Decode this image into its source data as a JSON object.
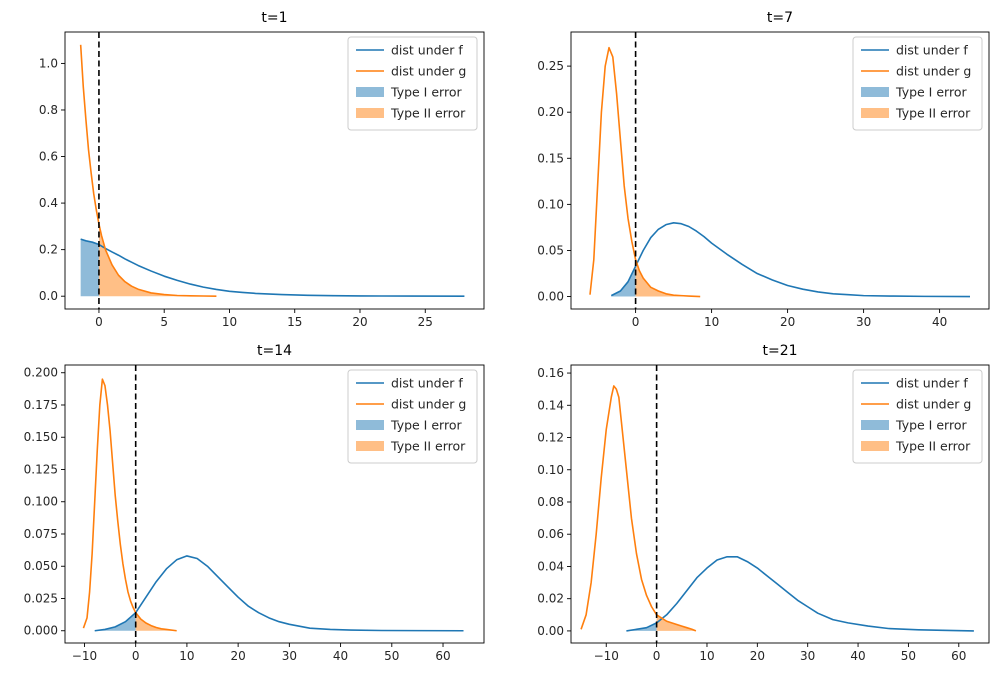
{
  "colors": {
    "f": "#1f77b4",
    "g": "#ff7f0e",
    "threshold": "#000000"
  },
  "chart_data": [
    {
      "type": "line",
      "title": "t=1",
      "xlim": [
        -2.6,
        29.5
      ],
      "ylim": [
        -0.055,
        1.135
      ],
      "xticks": [
        0,
        5,
        10,
        15,
        20,
        25
      ],
      "yticks": [
        0.0,
        0.2,
        0.4,
        0.6,
        0.8,
        1.0
      ],
      "ytick_decimals": 1,
      "legend": {
        "position": "top-right",
        "entries": [
          "dist under f",
          "dist under g",
          "Type I error",
          "Type II error"
        ]
      },
      "threshold_x": 0,
      "series": [
        {
          "name": "dist under f",
          "x": [
            -1.4,
            -1.0,
            -0.5,
            0.0,
            0.5,
            1.0,
            1.5,
            2.0,
            2.5,
            3.0,
            4.0,
            5.0,
            6.0,
            7.0,
            8.0,
            9.0,
            10.0,
            11.0,
            12.0,
            14.0,
            16.0,
            18.0,
            20.0,
            24.0,
            28.0
          ],
          "y": [
            0.245,
            0.238,
            0.232,
            0.222,
            0.205,
            0.19,
            0.176,
            0.16,
            0.146,
            0.132,
            0.108,
            0.086,
            0.068,
            0.052,
            0.039,
            0.029,
            0.021,
            0.016,
            0.012,
            0.007,
            0.004,
            0.002,
            0.001,
            0.0005,
            0.0
          ]
        },
        {
          "name": "dist under g",
          "x": [
            -1.4,
            -1.2,
            -1.0,
            -0.8,
            -0.6,
            -0.4,
            -0.2,
            0.0,
            0.2,
            0.5,
            1.0,
            1.5,
            2.0,
            2.5,
            3.0,
            4.0,
            5.0,
            6.0,
            7.0,
            8.0,
            9.0
          ],
          "y": [
            1.08,
            0.9,
            0.76,
            0.63,
            0.53,
            0.44,
            0.37,
            0.31,
            0.26,
            0.2,
            0.135,
            0.09,
            0.062,
            0.043,
            0.03,
            0.014,
            0.007,
            0.003,
            0.0015,
            0.0008,
            0.0
          ]
        }
      ]
    },
    {
      "type": "line",
      "title": "t=7",
      "xlim": [
        -8.5,
        46.5
      ],
      "ylim": [
        -0.0135,
        0.287
      ],
      "xticks": [
        0,
        10,
        20,
        30,
        40
      ],
      "yticks": [
        0.0,
        0.05,
        0.1,
        0.15,
        0.2,
        0.25
      ],
      "ytick_decimals": 2,
      "legend": {
        "position": "top-right",
        "entries": [
          "dist under f",
          "dist under g",
          "Type I error",
          "Type II error"
        ]
      },
      "threshold_x": 0,
      "series": [
        {
          "name": "dist under f",
          "x": [
            -3.2,
            -2,
            -1,
            0,
            1,
            2,
            3,
            4,
            5,
            6,
            7,
            8,
            9,
            10,
            12,
            14,
            16,
            18,
            20,
            22,
            24,
            26,
            28,
            30,
            34,
            38,
            44
          ],
          "y": [
            0.001,
            0.006,
            0.016,
            0.033,
            0.05,
            0.064,
            0.073,
            0.078,
            0.08,
            0.079,
            0.076,
            0.071,
            0.065,
            0.058,
            0.046,
            0.035,
            0.025,
            0.018,
            0.012,
            0.008,
            0.005,
            0.003,
            0.002,
            0.001,
            0.0005,
            0.0002,
            0.0
          ]
        },
        {
          "name": "dist under g",
          "x": [
            -6.0,
            -5.5,
            -5.0,
            -4.5,
            -4.0,
            -3.5,
            -3.0,
            -2.5,
            -2.0,
            -1.5,
            -1.0,
            -0.5,
            0.0,
            0.5,
            1.0,
            2.0,
            3.0,
            4.0,
            5.0,
            6.0,
            7.0,
            8.5
          ],
          "y": [
            0.002,
            0.04,
            0.12,
            0.2,
            0.25,
            0.27,
            0.26,
            0.22,
            0.17,
            0.12,
            0.085,
            0.06,
            0.04,
            0.028,
            0.02,
            0.01,
            0.006,
            0.003,
            0.0015,
            0.001,
            0.0005,
            0.0
          ]
        }
      ]
    },
    {
      "type": "line",
      "title": "t=14",
      "xlim": [
        -13.8,
        68.0
      ],
      "ylim": [
        -0.0095,
        0.206
      ],
      "xticks": [
        -10,
        0,
        10,
        20,
        30,
        40,
        50,
        60
      ],
      "yticks": [
        0.0,
        0.025,
        0.05,
        0.075,
        0.1,
        0.125,
        0.15,
        0.175,
        0.2
      ],
      "ytick_decimals": 3,
      "legend": {
        "position": "top-right",
        "entries": [
          "dist under f",
          "dist under g",
          "Type I error",
          "Type II error"
        ]
      },
      "threshold_x": 0,
      "series": [
        {
          "name": "dist under f",
          "x": [
            -8,
            -6,
            -4,
            -2,
            0,
            2,
            4,
            6,
            8,
            10,
            12,
            14,
            16,
            18,
            20,
            22,
            24,
            26,
            28,
            30,
            34,
            38,
            42,
            48,
            55,
            64
          ],
          "y": [
            0.0,
            0.001,
            0.003,
            0.007,
            0.014,
            0.026,
            0.038,
            0.048,
            0.055,
            0.058,
            0.056,
            0.05,
            0.042,
            0.034,
            0.026,
            0.019,
            0.014,
            0.01,
            0.007,
            0.005,
            0.002,
            0.001,
            0.0005,
            0.0002,
            0.0001,
            0.0
          ]
        },
        {
          "name": "dist under g",
          "x": [
            -10.2,
            -9.5,
            -9.0,
            -8.5,
            -8.0,
            -7.5,
            -7.0,
            -6.5,
            -6.0,
            -5.5,
            -5.0,
            -4.5,
            -4.0,
            -3.5,
            -3.0,
            -2.5,
            -2.0,
            -1.5,
            -1.0,
            -0.5,
            0.0,
            1.0,
            2.0,
            3.0,
            4.0,
            5.0,
            6.0,
            8.0
          ],
          "y": [
            0.002,
            0.01,
            0.03,
            0.06,
            0.1,
            0.14,
            0.175,
            0.195,
            0.19,
            0.175,
            0.155,
            0.13,
            0.105,
            0.085,
            0.067,
            0.052,
            0.04,
            0.03,
            0.023,
            0.018,
            0.014,
            0.009,
            0.006,
            0.004,
            0.0025,
            0.0015,
            0.001,
            0.0
          ]
        }
      ]
    },
    {
      "type": "line",
      "title": "t=21",
      "xlim": [
        -17.0,
        66.0
      ],
      "ylim": [
        -0.0075,
        0.165
      ],
      "xticks": [
        -10,
        0,
        10,
        20,
        30,
        40,
        50,
        60
      ],
      "yticks": [
        0.0,
        0.02,
        0.04,
        0.06,
        0.08,
        0.1,
        0.12,
        0.14,
        0.16
      ],
      "ytick_decimals": 2,
      "legend": {
        "position": "top-right",
        "entries": [
          "dist under f",
          "dist under g",
          "Type I error",
          "Type II error"
        ]
      },
      "threshold_x": 0,
      "series": [
        {
          "name": "dist under f",
          "x": [
            -6,
            -4,
            -2,
            0,
            2,
            4,
            6,
            8,
            10,
            12,
            14,
            16,
            18,
            20,
            22,
            24,
            26,
            28,
            30,
            32,
            35,
            38,
            42,
            46,
            52,
            58,
            63
          ],
          "y": [
            0.0,
            0.001,
            0.002,
            0.005,
            0.01,
            0.017,
            0.025,
            0.033,
            0.039,
            0.044,
            0.046,
            0.046,
            0.043,
            0.039,
            0.034,
            0.029,
            0.024,
            0.019,
            0.015,
            0.011,
            0.007,
            0.005,
            0.003,
            0.0015,
            0.0007,
            0.0003,
            0.0
          ]
        },
        {
          "name": "dist under g",
          "x": [
            -15.0,
            -14.0,
            -13.0,
            -12.0,
            -11.0,
            -10.0,
            -9.0,
            -8.5,
            -8.0,
            -7.5,
            -7.0,
            -6.0,
            -5.0,
            -4.0,
            -3.0,
            -2.0,
            -1.0,
            0.0,
            1.0,
            2.0,
            3.0,
            4.0,
            5.0,
            6.0,
            7.0,
            7.8
          ],
          "y": [
            0.001,
            0.01,
            0.03,
            0.06,
            0.095,
            0.125,
            0.145,
            0.152,
            0.15,
            0.145,
            0.13,
            0.1,
            0.07,
            0.048,
            0.032,
            0.022,
            0.015,
            0.01,
            0.008,
            0.006,
            0.005,
            0.004,
            0.003,
            0.002,
            0.001,
            0.0
          ]
        }
      ]
    }
  ]
}
